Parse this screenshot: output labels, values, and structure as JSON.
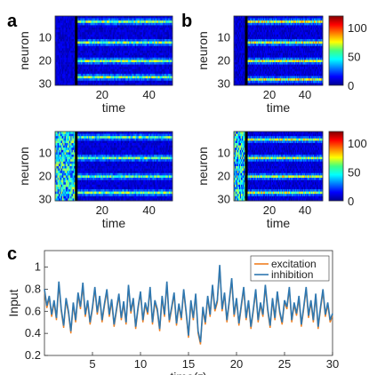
{
  "figure": {
    "panel_labels": [
      "a",
      "b",
      "c"
    ]
  },
  "chart_data": [
    {
      "type": "heatmap",
      "panel": "a",
      "position": "top",
      "xlabel": "time",
      "ylabel": "neuron",
      "xticks": [
        20,
        40
      ],
      "yticks": [
        10,
        20,
        30
      ],
      "xlim": [
        0,
        50
      ],
      "ylim": [
        1,
        30
      ],
      "marker_line_time": 9,
      "active_rows": [
        3,
        12,
        20,
        27
      ],
      "active_intensity": 60,
      "background_intensity": 5
    },
    {
      "type": "heatmap",
      "panel": "a",
      "position": "bottom",
      "xlabel": "time",
      "ylabel": "neuron",
      "xticks": [
        20,
        40
      ],
      "yticks": [
        10,
        20,
        30
      ],
      "xlim": [
        0,
        50
      ],
      "ylim": [
        1,
        30
      ],
      "marker_line_time": 9,
      "active_rows": [
        3,
        12,
        20,
        27
      ],
      "active_intensity": 55,
      "background_intensity": 5,
      "early_noise_until": 9
    },
    {
      "type": "heatmap",
      "panel": "b",
      "position": "top",
      "xlabel": "time",
      "ylabel": "neuron",
      "xticks": [
        20,
        40
      ],
      "yticks": [
        10,
        20,
        30
      ],
      "xlim": [
        0,
        50
      ],
      "ylim": [
        1,
        30
      ],
      "marker_line_time": 7,
      "active_rows": [
        3,
        12,
        20,
        28
      ],
      "active_intensity": 70,
      "background_intensity": 5,
      "colorbar": {
        "ticks": [
          0,
          50,
          100
        ],
        "range": [
          0,
          120
        ]
      }
    },
    {
      "type": "heatmap",
      "panel": "b",
      "position": "bottom",
      "xlabel": "time",
      "ylabel": "neuron",
      "xticks": [
        20,
        40
      ],
      "yticks": [
        10,
        20,
        30
      ],
      "xlim": [
        0,
        50
      ],
      "ylim": [
        1,
        30
      ],
      "marker_line_time": 7,
      "active_rows": [
        4,
        12,
        20,
        27
      ],
      "active_intensity": 65,
      "background_intensity": 5,
      "early_noise_until": 7,
      "colorbar": {
        "ticks": [
          0,
          50,
          100
        ],
        "range": [
          0,
          120
        ]
      }
    },
    {
      "type": "line",
      "panel": "c",
      "xlabel": "time(τ)",
      "ylabel": "Input",
      "xlim": [
        0,
        30
      ],
      "ylim": [
        0.2,
        1.15
      ],
      "xticks": [
        5,
        10,
        15,
        20,
        25,
        30
      ],
      "yticks": [
        0.2,
        0.4,
        0.6,
        0.8,
        1
      ],
      "legend": "top-right",
      "series": [
        {
          "name": "excitation",
          "color": "#f07f20",
          "x": [
            0,
            0.25,
            0.5,
            0.75,
            1,
            1.25,
            1.5,
            1.75,
            2,
            2.25,
            2.5,
            2.75,
            3,
            3.25,
            3.5,
            3.75,
            4,
            4.25,
            4.5,
            4.75,
            5,
            5.25,
            5.5,
            5.75,
            6,
            6.25,
            6.5,
            6.75,
            7,
            7.25,
            7.5,
            7.75,
            8,
            8.25,
            8.5,
            8.75,
            9,
            9.25,
            9.5,
            9.75,
            10,
            10.25,
            10.5,
            10.75,
            11,
            11.25,
            11.5,
            11.75,
            12,
            12.25,
            12.5,
            12.75,
            13,
            13.25,
            13.5,
            13.75,
            14,
            14.25,
            14.5,
            14.75,
            15,
            15.25,
            15.5,
            15.75,
            16,
            16.25,
            16.5,
            16.75,
            17,
            17.25,
            17.5,
            17.75,
            18,
            18.25,
            18.5,
            18.75,
            19,
            19.25,
            19.5,
            19.75,
            20,
            20.25,
            20.5,
            20.75,
            21,
            21.25,
            21.5,
            21.75,
            22,
            22.25,
            22.5,
            22.75,
            23,
            23.25,
            23.5,
            23.75,
            24,
            24.25,
            24.5,
            24.75,
            25,
            25.25,
            25.5,
            25.75,
            26,
            26.25,
            26.5,
            26.75,
            27,
            27.25,
            27.5,
            27.75,
            28,
            28.25,
            28.5,
            28.75,
            29,
            29.25,
            29.5,
            29.75,
            30
          ],
          "values": [
            0.78,
            0.63,
            0.72,
            0.55,
            0.68,
            0.52,
            0.84,
            0.6,
            0.45,
            0.7,
            0.58,
            0.4,
            0.66,
            0.5,
            0.75,
            0.62,
            0.83,
            0.55,
            0.68,
            0.48,
            0.62,
            0.8,
            0.57,
            0.72,
            0.5,
            0.65,
            0.78,
            0.55,
            0.69,
            0.46,
            0.6,
            0.74,
            0.52,
            0.67,
            0.48,
            0.82,
            0.58,
            0.7,
            0.44,
            0.62,
            0.76,
            0.5,
            0.66,
            0.57,
            0.8,
            0.48,
            0.68,
            0.6,
            0.42,
            0.72,
            0.55,
            0.85,
            0.5,
            0.62,
            0.75,
            0.47,
            0.65,
            0.52,
            0.78,
            0.58,
            0.36,
            0.68,
            0.52,
            0.74,
            0.4,
            0.3,
            0.62,
            0.48,
            0.72,
            0.55,
            0.82,
            0.6,
            0.68,
            1.0,
            0.6,
            0.75,
            0.5,
            0.68,
            0.88,
            0.55,
            0.7,
            0.47,
            0.64,
            0.8,
            0.52,
            0.68,
            0.44,
            0.6,
            0.78,
            0.5,
            0.66,
            0.55,
            0.82,
            0.6,
            0.45,
            0.7,
            0.52,
            0.76,
            0.58,
            0.48,
            0.68,
            0.62,
            0.8,
            0.5,
            0.66,
            0.56,
            0.72,
            0.46,
            0.62,
            0.8,
            0.54,
            0.68,
            0.5,
            0.74,
            0.44,
            0.62,
            0.78,
            0.55,
            0.66,
            0.5,
            0.56
          ]
        },
        {
          "name": "inhibition",
          "color": "#2e77b0",
          "x": [
            0,
            0.25,
            0.5,
            0.75,
            1,
            1.25,
            1.5,
            1.75,
            2,
            2.25,
            2.5,
            2.75,
            3,
            3.25,
            3.5,
            3.75,
            4,
            4.25,
            4.5,
            4.75,
            5,
            5.25,
            5.5,
            5.75,
            6,
            6.25,
            6.5,
            6.75,
            7,
            7.25,
            7.5,
            7.75,
            8,
            8.25,
            8.5,
            8.75,
            9,
            9.25,
            9.5,
            9.75,
            10,
            10.25,
            10.5,
            10.75,
            11,
            11.25,
            11.5,
            11.75,
            12,
            12.25,
            12.5,
            12.75,
            13,
            13.25,
            13.5,
            13.75,
            14,
            14.25,
            14.5,
            14.75,
            15,
            15.25,
            15.5,
            15.75,
            16,
            16.25,
            16.5,
            16.75,
            17,
            17.25,
            17.5,
            17.75,
            18,
            18.25,
            18.5,
            18.75,
            19,
            19.25,
            19.5,
            19.75,
            20,
            20.25,
            20.5,
            20.75,
            21,
            21.25,
            21.5,
            21.75,
            22,
            22.25,
            22.5,
            22.75,
            23,
            23.25,
            23.5,
            23.75,
            24,
            24.25,
            24.5,
            24.75,
            25,
            25.25,
            25.5,
            25.75,
            26,
            26.25,
            26.5,
            26.75,
            27,
            27.25,
            27.5,
            27.75,
            28,
            28.25,
            28.5,
            28.75,
            29,
            29.25,
            29.5,
            29.75,
            30
          ],
          "values": [
            0.8,
            0.65,
            0.74,
            0.57,
            0.7,
            0.54,
            0.87,
            0.62,
            0.47,
            0.72,
            0.6,
            0.42,
            0.68,
            0.52,
            0.77,
            0.64,
            0.86,
            0.57,
            0.7,
            0.5,
            0.64,
            0.82,
            0.59,
            0.74,
            0.52,
            0.67,
            0.8,
            0.57,
            0.71,
            0.48,
            0.62,
            0.76,
            0.54,
            0.69,
            0.5,
            0.84,
            0.6,
            0.72,
            0.46,
            0.64,
            0.78,
            0.52,
            0.68,
            0.59,
            0.82,
            0.5,
            0.7,
            0.62,
            0.44,
            0.74,
            0.57,
            0.87,
            0.52,
            0.64,
            0.77,
            0.49,
            0.67,
            0.54,
            0.8,
            0.6,
            0.38,
            0.7,
            0.54,
            0.76,
            0.42,
            0.32,
            0.64,
            0.5,
            0.74,
            0.57,
            0.84,
            0.62,
            0.7,
            1.02,
            0.62,
            0.77,
            0.52,
            0.7,
            0.9,
            0.57,
            0.72,
            0.49,
            0.66,
            0.82,
            0.54,
            0.7,
            0.46,
            0.62,
            0.8,
            0.52,
            0.68,
            0.57,
            0.84,
            0.62,
            0.47,
            0.72,
            0.54,
            0.78,
            0.6,
            0.5,
            0.7,
            0.64,
            0.82,
            0.52,
            0.68,
            0.58,
            0.74,
            0.48,
            0.64,
            0.82,
            0.56,
            0.7,
            0.52,
            0.76,
            0.46,
            0.64,
            0.8,
            0.57,
            0.68,
            0.52,
            0.58
          ]
        }
      ]
    }
  ]
}
